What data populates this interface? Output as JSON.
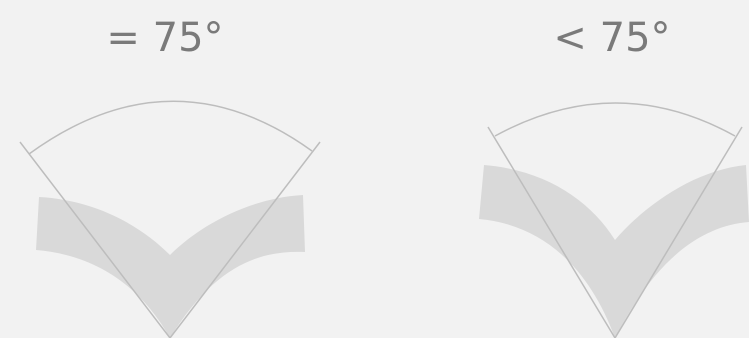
{
  "panels": [
    {
      "label": "= 75°"
    },
    {
      "label": "< 75°"
    }
  ],
  "colors": {
    "background": "#f2f2f2",
    "label": "#7a7a7a",
    "band": "#d9d9d9",
    "line": "#bdbdbd"
  }
}
